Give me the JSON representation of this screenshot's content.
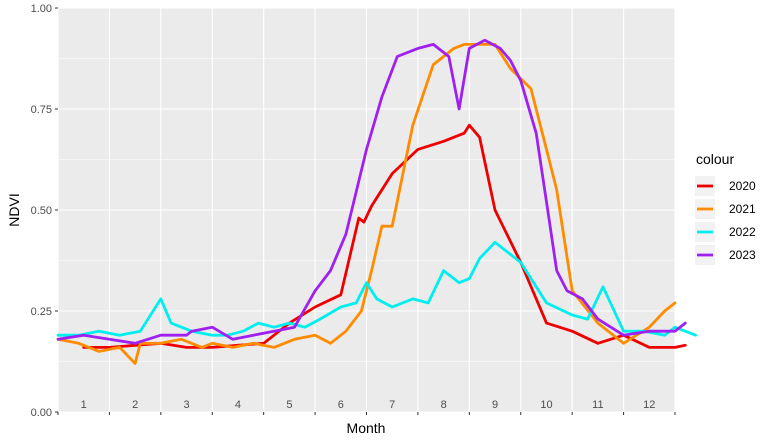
{
  "chart_data": {
    "type": "line",
    "title": "",
    "xlabel": "Month",
    "ylabel": "NDVI",
    "xlim": [
      0,
      12
    ],
    "ylim": [
      0,
      1
    ],
    "y_ticks": [
      "0.00",
      "0.25",
      "0.50",
      "0.75",
      "1.00"
    ],
    "x_tick_labels": [
      "1",
      "2",
      "3",
      "4",
      "5",
      "6",
      "7",
      "8",
      "9",
      "10",
      "11",
      "12"
    ],
    "grid": true,
    "legend": {
      "title": "colour",
      "position": "right"
    },
    "series": [
      {
        "name": "2020",
        "color": "#ee0000",
        "x": [
          0.5,
          1.0,
          1.5,
          2.0,
          2.5,
          3.0,
          3.5,
          4.0,
          4.5,
          5.0,
          5.5,
          5.85,
          5.95,
          6.1,
          6.5,
          7.0,
          7.5,
          7.9,
          8.0,
          8.2,
          8.5,
          9.0,
          9.5,
          10.0,
          10.5,
          11.0,
          11.5,
          12.0,
          12.2
        ],
        "values": [
          0.16,
          0.16,
          0.165,
          0.17,
          0.16,
          0.16,
          0.165,
          0.17,
          0.22,
          0.26,
          0.29,
          0.48,
          0.47,
          0.51,
          0.59,
          0.65,
          0.67,
          0.69,
          0.71,
          0.68,
          0.5,
          0.37,
          0.22,
          0.2,
          0.17,
          0.19,
          0.16,
          0.16,
          0.165
        ]
      },
      {
        "name": "2021",
        "color": "#ff8c00",
        "x": [
          0.0,
          0.4,
          0.8,
          1.2,
          1.5,
          1.6,
          2.0,
          2.4,
          2.8,
          3.0,
          3.4,
          3.8,
          4.2,
          4.6,
          5.0,
          5.3,
          5.6,
          5.9,
          6.1,
          6.3,
          6.5,
          6.9,
          7.3,
          7.5,
          7.7,
          7.9,
          8.2,
          8.5,
          8.8,
          9.2,
          9.5,
          9.7,
          10.0,
          10.5,
          11.0,
          11.5,
          11.8,
          12.0
        ],
        "values": [
          0.18,
          0.17,
          0.15,
          0.16,
          0.12,
          0.17,
          0.17,
          0.18,
          0.16,
          0.17,
          0.16,
          0.17,
          0.16,
          0.18,
          0.19,
          0.17,
          0.2,
          0.25,
          0.35,
          0.46,
          0.46,
          0.71,
          0.86,
          0.88,
          0.9,
          0.91,
          0.91,
          0.91,
          0.85,
          0.8,
          0.65,
          0.55,
          0.3,
          0.22,
          0.17,
          0.21,
          0.25,
          0.27
        ]
      },
      {
        "name": "2022",
        "color": "#00eeee",
        "x": [
          0.0,
          0.4,
          0.8,
          1.2,
          1.6,
          2.0,
          2.2,
          2.6,
          3.0,
          3.3,
          3.6,
          3.9,
          4.2,
          4.5,
          4.8,
          5.1,
          5.5,
          5.8,
          6.0,
          6.2,
          6.5,
          6.9,
          7.2,
          7.5,
          7.8,
          8.0,
          8.2,
          8.5,
          8.8,
          9.0,
          9.5,
          10.0,
          10.3,
          10.6,
          11.0,
          11.4,
          11.8,
          12.0,
          12.4
        ],
        "values": [
          0.19,
          0.19,
          0.2,
          0.19,
          0.2,
          0.28,
          0.22,
          0.2,
          0.19,
          0.19,
          0.2,
          0.22,
          0.21,
          0.22,
          0.21,
          0.23,
          0.26,
          0.27,
          0.32,
          0.28,
          0.26,
          0.28,
          0.27,
          0.35,
          0.32,
          0.33,
          0.38,
          0.42,
          0.39,
          0.37,
          0.27,
          0.24,
          0.23,
          0.31,
          0.2,
          0.2,
          0.19,
          0.21,
          0.19
        ]
      },
      {
        "name": "2023",
        "color": "#a020f0",
        "x": [
          0.0,
          0.5,
          1.0,
          1.5,
          2.0,
          2.5,
          2.6,
          3.0,
          3.4,
          3.8,
          4.2,
          4.6,
          5.0,
          5.3,
          5.6,
          6.0,
          6.3,
          6.6,
          7.0,
          7.3,
          7.6,
          7.8,
          8.0,
          8.3,
          8.6,
          8.8,
          9.0,
          9.3,
          9.5,
          9.7,
          9.9,
          10.2,
          10.5,
          11.0,
          11.5,
          12.0,
          12.2
        ],
        "values": [
          0.18,
          0.19,
          0.18,
          0.17,
          0.19,
          0.19,
          0.2,
          0.21,
          0.18,
          0.19,
          0.2,
          0.21,
          0.3,
          0.35,
          0.44,
          0.65,
          0.78,
          0.88,
          0.9,
          0.91,
          0.88,
          0.75,
          0.9,
          0.92,
          0.9,
          0.87,
          0.82,
          0.69,
          0.52,
          0.35,
          0.3,
          0.28,
          0.23,
          0.19,
          0.2,
          0.2,
          0.22
        ]
      }
    ]
  }
}
